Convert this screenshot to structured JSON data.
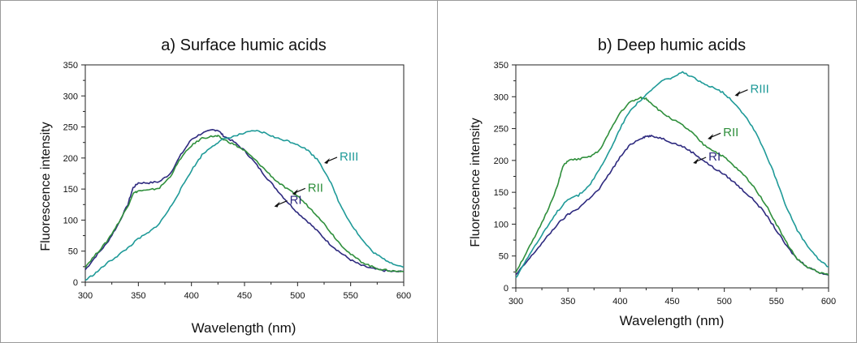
{
  "chart_data": [
    {
      "type": "line",
      "title": "a) Surface humic acids",
      "xlabel": "Wavelength (nm)",
      "ylabel": "Fluorescence intensity",
      "xlim": [
        300,
        600
      ],
      "ylim": [
        0,
        350
      ],
      "xticks": [
        300,
        350,
        400,
        450,
        500,
        550,
        600
      ],
      "yticks": [
        0,
        50,
        100,
        150,
        200,
        250,
        300,
        350
      ],
      "grid": false,
      "series": [
        {
          "name": "RI",
          "color": "#2e2a7f",
          "points": [
            [
              300,
              20
            ],
            [
              310,
              42
            ],
            [
              320,
              62
            ],
            [
              330,
              90
            ],
            [
              340,
              125
            ],
            [
              345,
              152
            ],
            [
              350,
              160
            ],
            [
              360,
              160
            ],
            [
              370,
              162
            ],
            [
              380,
              175
            ],
            [
              390,
              205
            ],
            [
              400,
              230
            ],
            [
              410,
              240
            ],
            [
              420,
              245
            ],
            [
              425,
              245
            ],
            [
              430,
              236
            ],
            [
              440,
              226
            ],
            [
              450,
              212
            ],
            [
              460,
              192
            ],
            [
              470,
              170
            ],
            [
              480,
              150
            ],
            [
              490,
              130
            ],
            [
              500,
              112
            ],
            [
              510,
              97
            ],
            [
              520,
              80
            ],
            [
              530,
              62
            ],
            [
              540,
              48
            ],
            [
              550,
              36
            ],
            [
              560,
              27
            ],
            [
              570,
              22
            ],
            [
              580,
              19
            ],
            [
              590,
              17
            ],
            [
              600,
              17
            ]
          ]
        },
        {
          "name": "RII",
          "color": "#2f8f3c",
          "points": [
            [
              300,
              25
            ],
            [
              310,
              45
            ],
            [
              320,
              65
            ],
            [
              330,
              92
            ],
            [
              340,
              122
            ],
            [
              345,
              143
            ],
            [
              350,
              147
            ],
            [
              360,
              148
            ],
            [
              370,
              152
            ],
            [
              380,
              170
            ],
            [
              390,
              200
            ],
            [
              400,
              220
            ],
            [
              410,
              232
            ],
            [
              420,
              235
            ],
            [
              425,
              235
            ],
            [
              430,
              230
            ],
            [
              440,
              222
            ],
            [
              450,
              212
            ],
            [
              460,
              197
            ],
            [
              470,
              180
            ],
            [
              480,
              163
            ],
            [
              490,
              150
            ],
            [
              500,
              139
            ],
            [
              510,
              122
            ],
            [
              520,
              105
            ],
            [
              530,
              83
            ],
            [
              540,
              62
            ],
            [
              550,
              45
            ],
            [
              560,
              33
            ],
            [
              570,
              25
            ],
            [
              580,
              20
            ],
            [
              590,
              18
            ],
            [
              600,
              17
            ]
          ]
        },
        {
          "name": "RIII",
          "color": "#1f9a98",
          "points": [
            [
              300,
              3
            ],
            [
              310,
              15
            ],
            [
              320,
              30
            ],
            [
              330,
              42
            ],
            [
              340,
              55
            ],
            [
              350,
              70
            ],
            [
              360,
              80
            ],
            [
              370,
              95
            ],
            [
              380,
              120
            ],
            [
              390,
              150
            ],
            [
              400,
              180
            ],
            [
              410,
              205
            ],
            [
              420,
              220
            ],
            [
              430,
              230
            ],
            [
              440,
              235
            ],
            [
              450,
              240
            ],
            [
              460,
              244
            ],
            [
              470,
              240
            ],
            [
              480,
              232
            ],
            [
              490,
              228
            ],
            [
              500,
              222
            ],
            [
              510,
              212
            ],
            [
              520,
              195
            ],
            [
              530,
              165
            ],
            [
              540,
              125
            ],
            [
              550,
              95
            ],
            [
              560,
              70
            ],
            [
              570,
              50
            ],
            [
              580,
              38
            ],
            [
              590,
              30
            ],
            [
              600,
              24
            ]
          ]
        }
      ],
      "annotations": [
        {
          "label": "RI",
          "x": 478,
          "y": 122
        },
        {
          "label": "RII",
          "x": 495,
          "y": 142
        },
        {
          "label": "RIII",
          "x": 525,
          "y": 192
        }
      ]
    },
    {
      "type": "line",
      "title": "b) Deep humic acids",
      "xlabel": "Wavelength (nm)",
      "ylabel": "Fluorescence intensity",
      "xlim": [
        300,
        600
      ],
      "ylim": [
        0,
        350
      ],
      "xticks": [
        300,
        350,
        400,
        450,
        500,
        550,
        600
      ],
      "yticks": [
        0,
        50,
        100,
        150,
        200,
        250,
        300,
        350
      ],
      "grid": false,
      "series": [
        {
          "name": "RI",
          "color": "#2e2a7f",
          "points": [
            [
              300,
              20
            ],
            [
              310,
              40
            ],
            [
              320,
              60
            ],
            [
              330,
              80
            ],
            [
              340,
              100
            ],
            [
              350,
              115
            ],
            [
              360,
              125
            ],
            [
              370,
              140
            ],
            [
              380,
              155
            ],
            [
              390,
              180
            ],
            [
              400,
              205
            ],
            [
              410,
              225
            ],
            [
              420,
              235
            ],
            [
              425,
              238
            ],
            [
              430,
              238
            ],
            [
              440,
              235
            ],
            [
              450,
              228
            ],
            [
              460,
              222
            ],
            [
              470,
              212
            ],
            [
              480,
              200
            ],
            [
              490,
              188
            ],
            [
              500,
              178
            ],
            [
              510,
              165
            ],
            [
              520,
              150
            ],
            [
              530,
              135
            ],
            [
              540,
              115
            ],
            [
              550,
              90
            ],
            [
              560,
              65
            ],
            [
              570,
              45
            ],
            [
              580,
              33
            ],
            [
              590,
              25
            ],
            [
              600,
              20
            ]
          ]
        },
        {
          "name": "RII",
          "color": "#2f8f3c",
          "points": [
            [
              300,
              25
            ],
            [
              310,
              55
            ],
            [
              320,
              85
            ],
            [
              330,
              120
            ],
            [
              340,
              160
            ],
            [
              345,
              190
            ],
            [
              350,
              200
            ],
            [
              360,
              202
            ],
            [
              370,
              205
            ],
            [
              380,
              215
            ],
            [
              390,
              245
            ],
            [
              400,
              275
            ],
            [
              410,
              292
            ],
            [
              420,
              298
            ],
            [
              425,
              297
            ],
            [
              430,
              290
            ],
            [
              440,
              275
            ],
            [
              450,
              265
            ],
            [
              460,
              255
            ],
            [
              470,
              242
            ],
            [
              480,
              225
            ],
            [
              490,
              215
            ],
            [
              500,
              205
            ],
            [
              510,
              190
            ],
            [
              520,
              175
            ],
            [
              530,
              155
            ],
            [
              540,
              130
            ],
            [
              550,
              100
            ],
            [
              560,
              70
            ],
            [
              570,
              45
            ],
            [
              580,
              32
            ],
            [
              590,
              25
            ],
            [
              600,
              20
            ]
          ]
        },
        {
          "name": "RIII",
          "color": "#1f9a98",
          "points": [
            [
              300,
              15
            ],
            [
              310,
              45
            ],
            [
              320,
              70
            ],
            [
              330,
              95
            ],
            [
              340,
              120
            ],
            [
              350,
              140
            ],
            [
              360,
              145
            ],
            [
              370,
              160
            ],
            [
              380,
              185
            ],
            [
              390,
              215
            ],
            [
              400,
              250
            ],
            [
              410,
              280
            ],
            [
              420,
              295
            ],
            [
              430,
              310
            ],
            [
              440,
              325
            ],
            [
              450,
              330
            ],
            [
              460,
              338
            ],
            [
              470,
              330
            ],
            [
              480,
              320
            ],
            [
              490,
              315
            ],
            [
              500,
              305
            ],
            [
              510,
              290
            ],
            [
              520,
              270
            ],
            [
              530,
              245
            ],
            [
              540,
              210
            ],
            [
              550,
              170
            ],
            [
              560,
              125
            ],
            [
              570,
              90
            ],
            [
              580,
              65
            ],
            [
              590,
              45
            ],
            [
              600,
              33
            ]
          ]
        }
      ],
      "annotations": [
        {
          "label": "RI",
          "x": 470,
          "y": 196
        },
        {
          "label": "RII",
          "x": 484,
          "y": 234
        },
        {
          "label": "RIII",
          "x": 510,
          "y": 302
        }
      ]
    }
  ]
}
